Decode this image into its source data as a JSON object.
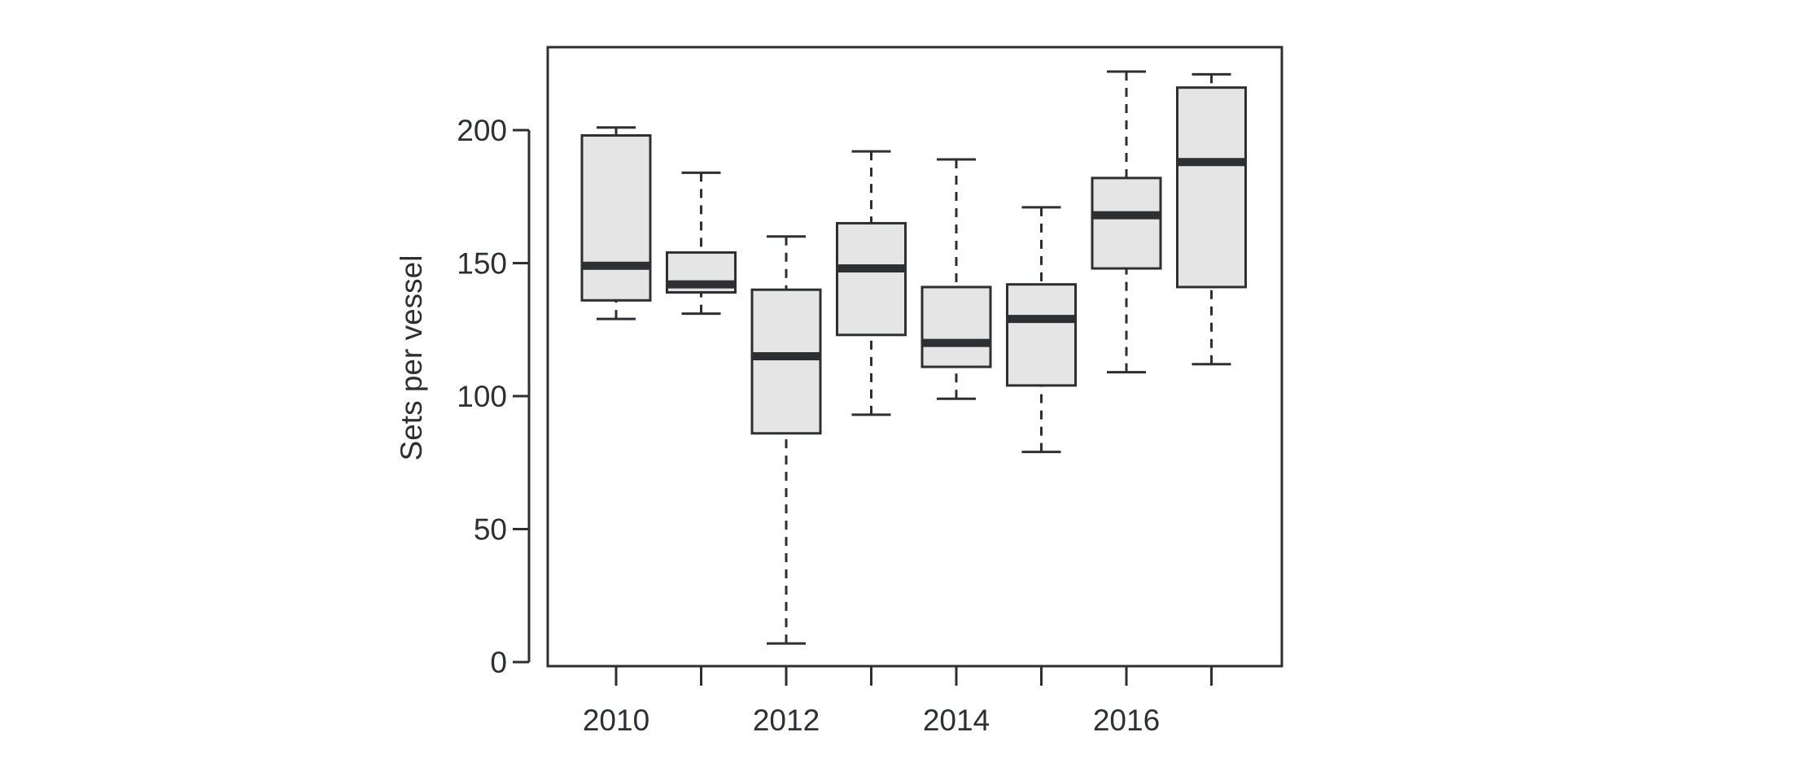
{
  "chart_data": {
    "type": "box",
    "title": "",
    "xlabel": "",
    "ylabel": "Sets per vessel",
    "ylim": [
      0,
      225
    ],
    "y_ticks": [
      0,
      50,
      100,
      150,
      200
    ],
    "categories": [
      "2010",
      "2011",
      "2012",
      "2013",
      "2014",
      "2015",
      "2016",
      "2017"
    ],
    "x_tick_labels": [
      "2010",
      "",
      "2012",
      "",
      "2014",
      "",
      "2016",
      ""
    ],
    "boxes": [
      {
        "category": "2010",
        "whisker_low": 129,
        "q1": 136,
        "median": 149,
        "q3": 198,
        "whisker_high": 201
      },
      {
        "category": "2011",
        "whisker_low": 131,
        "q1": 139,
        "median": 142,
        "q3": 154,
        "whisker_high": 184
      },
      {
        "category": "2012",
        "whisker_low": 7,
        "q1": 86,
        "median": 115,
        "q3": 140,
        "whisker_high": 160
      },
      {
        "category": "2013",
        "whisker_low": 93,
        "q1": 123,
        "median": 148,
        "q3": 165,
        "whisker_high": 192
      },
      {
        "category": "2014",
        "whisker_low": 99,
        "q1": 111,
        "median": 120,
        "q3": 141,
        "whisker_high": 189
      },
      {
        "category": "2015",
        "whisker_low": 79,
        "q1": 104,
        "median": 129,
        "q3": 142,
        "whisker_high": 171
      },
      {
        "category": "2016",
        "whisker_low": 109,
        "q1": 148,
        "median": 168,
        "q3": 182,
        "whisker_high": 222
      },
      {
        "category": "2017",
        "whisker_low": 112,
        "q1": 141,
        "median": 188,
        "q3": 216,
        "whisker_high": 221
      }
    ],
    "grid": false,
    "legend": "none",
    "colors": {
      "box_fill": "#e5e5e5",
      "stroke": "#2d2f33",
      "median": "#2d2f33"
    }
  }
}
